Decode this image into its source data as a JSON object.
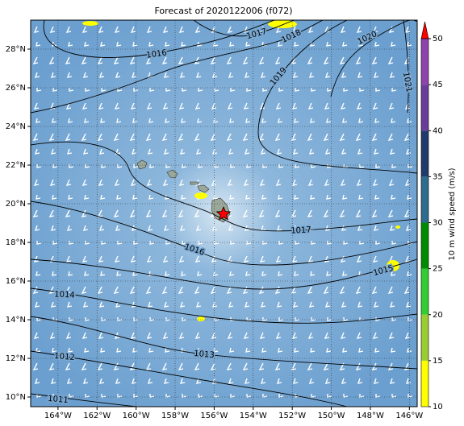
{
  "chart_data": {
    "type": "map",
    "title": "Forecast of 2020122006 (f072)",
    "xlim": [
      -165.4,
      -145.6
    ],
    "ylim": [
      9.5,
      29.5
    ],
    "xticks": [
      {
        "value": -164,
        "label": "164°W"
      },
      {
        "value": -162,
        "label": "162°W"
      },
      {
        "value": -160,
        "label": "160°W"
      },
      {
        "value": -158,
        "label": "158°W"
      },
      {
        "value": -156,
        "label": "156°W"
      },
      {
        "value": -154,
        "label": "154°W"
      },
      {
        "value": -152,
        "label": "152°W"
      },
      {
        "value": -150,
        "label": "150°W"
      },
      {
        "value": -148,
        "label": "148°W"
      },
      {
        "value": -146,
        "label": "146°W"
      }
    ],
    "yticks": [
      {
        "value": 10,
        "label": "10°N"
      },
      {
        "value": 12,
        "label": "12°N"
      },
      {
        "value": 14,
        "label": "14°N"
      },
      {
        "value": 16,
        "label": "16°N"
      },
      {
        "value": 18,
        "label": "18°N"
      },
      {
        "value": 20,
        "label": "20°N"
      },
      {
        "value": 22,
        "label": "22°N"
      },
      {
        "value": 24,
        "label": "24°N"
      },
      {
        "value": 26,
        "label": "26°N"
      },
      {
        "value": 28,
        "label": "28°N"
      }
    ],
    "grid": true,
    "contour_levels": [
      1011,
      1012,
      1013,
      1014,
      1015,
      1016,
      1016,
      1017,
      1017,
      1018,
      1019,
      1020,
      1021
    ],
    "colorbar": {
      "label": "10 m wind speed (m/s)",
      "ticks": [
        10,
        15,
        20,
        25,
        30,
        35,
        40,
        45,
        50
      ],
      "colors": [
        "#ffff00",
        "#9acd32",
        "#32cd32",
        "#008b00",
        "#2e6b8f",
        "#1f3a6b",
        "#6a3d9a",
        "#8e44ad"
      ],
      "extend_color": "#ff0000"
    }
  }
}
